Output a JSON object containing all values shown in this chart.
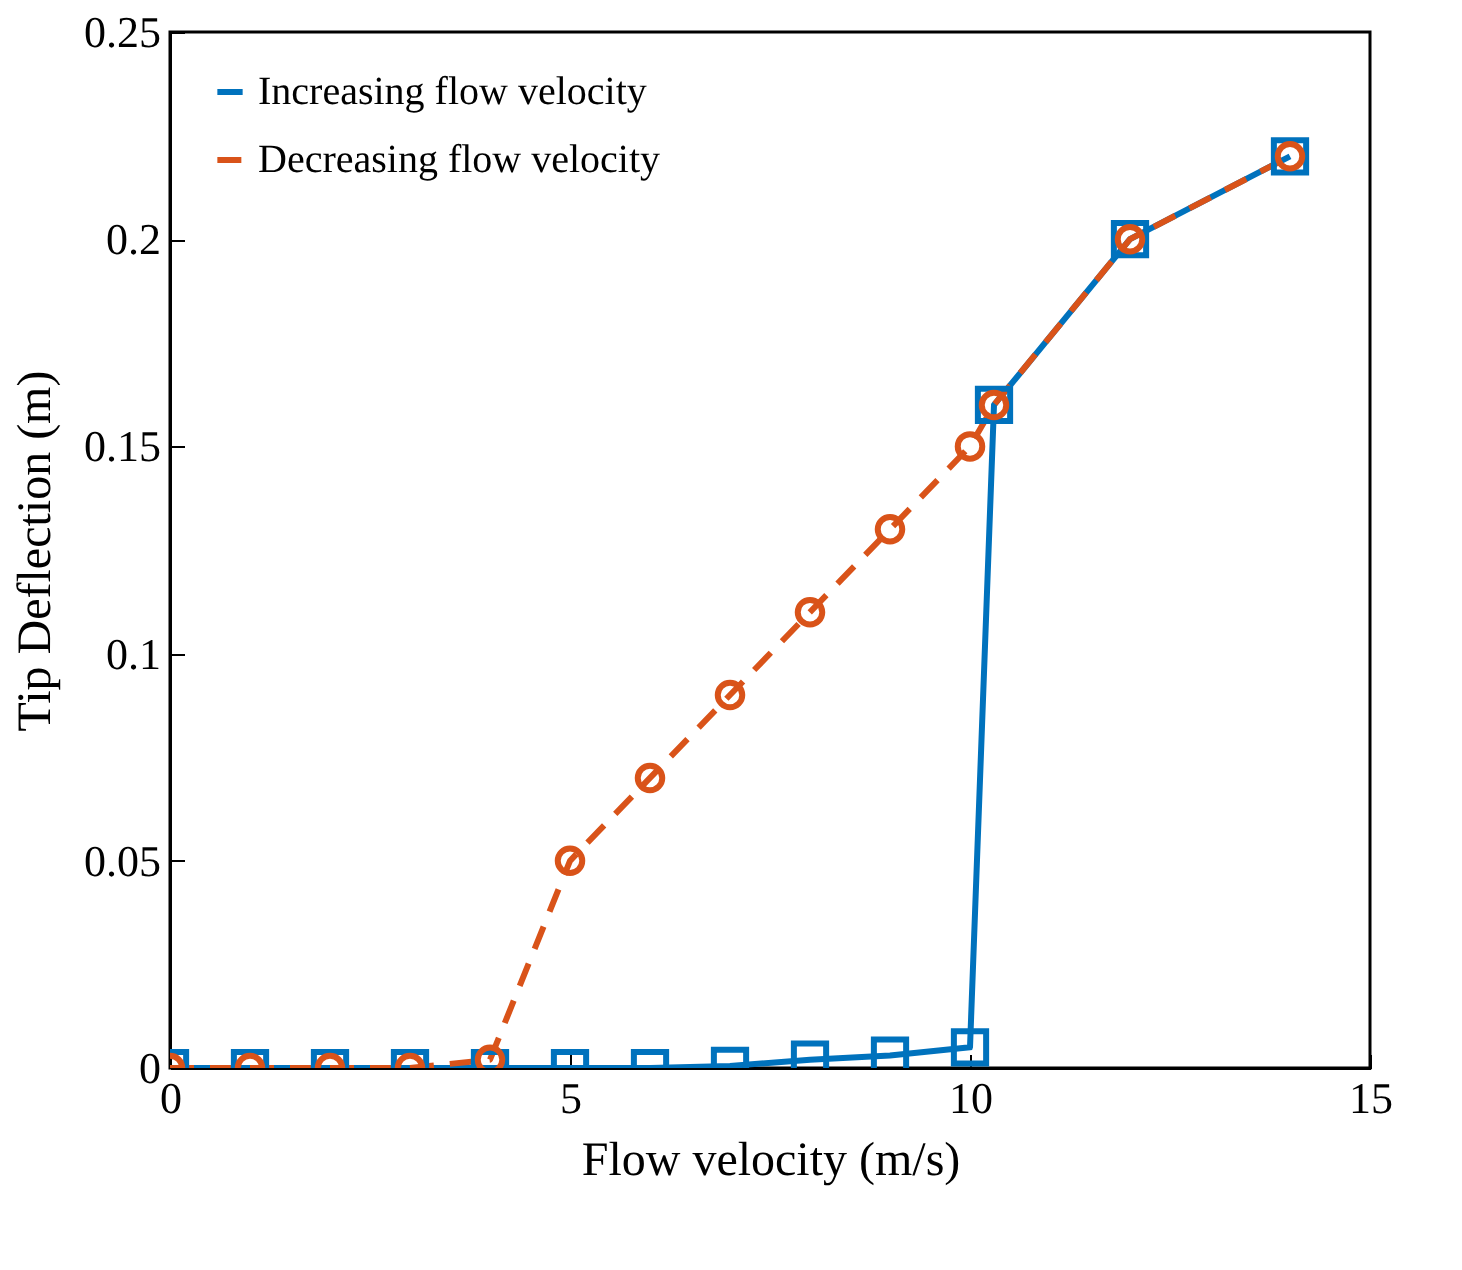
{
  "chart_data": {
    "type": "line",
    "xlabel": "Flow velocity (m/s)",
    "ylabel": "Tip Deflection (m)",
    "xlim": [
      0,
      15
    ],
    "xticks": [
      0,
      5,
      10,
      15
    ],
    "ylim": [
      0,
      0.25
    ],
    "yticks": [
      {
        "value": 0,
        "label": "0"
      },
      0.05,
      0.1,
      0.15,
      0.2,
      0.25
    ],
    "grid": false,
    "legend": "top left",
    "series": [
      {
        "name": "Increasing flow velocity",
        "color": "#0072bd",
        "marker": "square",
        "line_style": "solid",
        "x": [
          0,
          1,
          2,
          3,
          4,
          5,
          6,
          7,
          8,
          9,
          10,
          10.3,
          12,
          14
        ],
        "values": [
          0,
          0,
          0,
          0,
          0,
          0,
          0,
          0.0005,
          0.002,
          0.003,
          0.005,
          0.16,
          0.2,
          0.22
        ]
      },
      {
        "name": "Decreasing flow velocity",
        "color": "#d95319",
        "marker": "circle",
        "line_style": "dashed",
        "x": [
          0,
          1,
          2,
          3,
          4,
          5,
          6,
          7,
          8,
          9,
          10,
          10.3,
          12,
          14
        ],
        "values": [
          0,
          0,
          0,
          0,
          0.002,
          0.05,
          0.07,
          0.09,
          0.11,
          0.13,
          0.15,
          0.16,
          0.2,
          0.22
        ]
      }
    ]
  }
}
